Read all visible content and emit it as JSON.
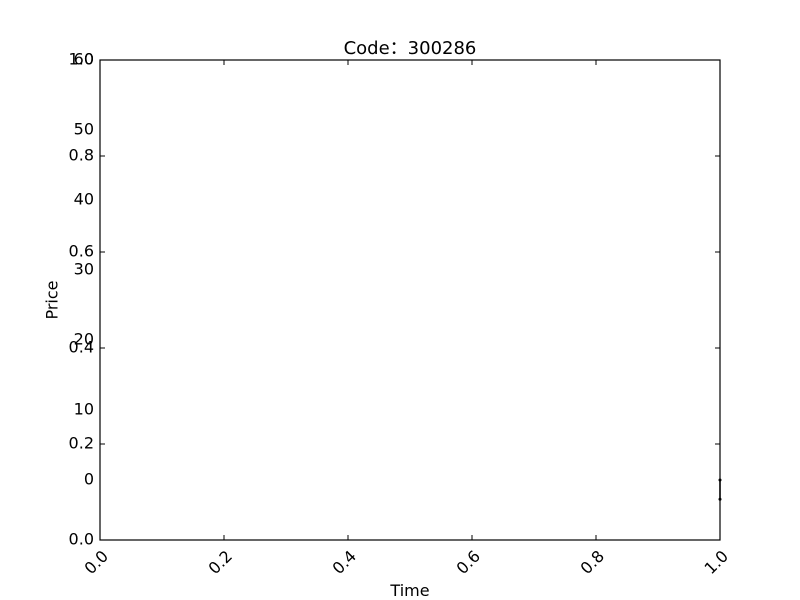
{
  "chart_data": {
    "type": "line",
    "title": "Code：300286",
    "xlabel": "Time",
    "ylabel": "Price",
    "xlim": [
      0.0,
      1.0
    ],
    "ylim": [
      0.0,
      1.0
    ],
    "x_ticks": [
      "0.0",
      "0.2",
      "0.4",
      "0.6",
      "0.8",
      "1.0"
    ],
    "y_ticks": [
      "0.0",
      "0.2",
      "0.4",
      "0.6",
      "0.8",
      "1.0"
    ],
    "secondary_ylim": [
      -8.6,
      60
    ],
    "secondary_y_ticks": [
      "0",
      "10",
      "20",
      "30",
      "40",
      "50",
      "60"
    ],
    "x_tick_rotation": 45,
    "grid": false,
    "series": [
      {
        "color": "#000000",
        "x": [
          1.0,
          1.0
        ],
        "y": [
          0.125,
          0.085
        ]
      }
    ]
  }
}
